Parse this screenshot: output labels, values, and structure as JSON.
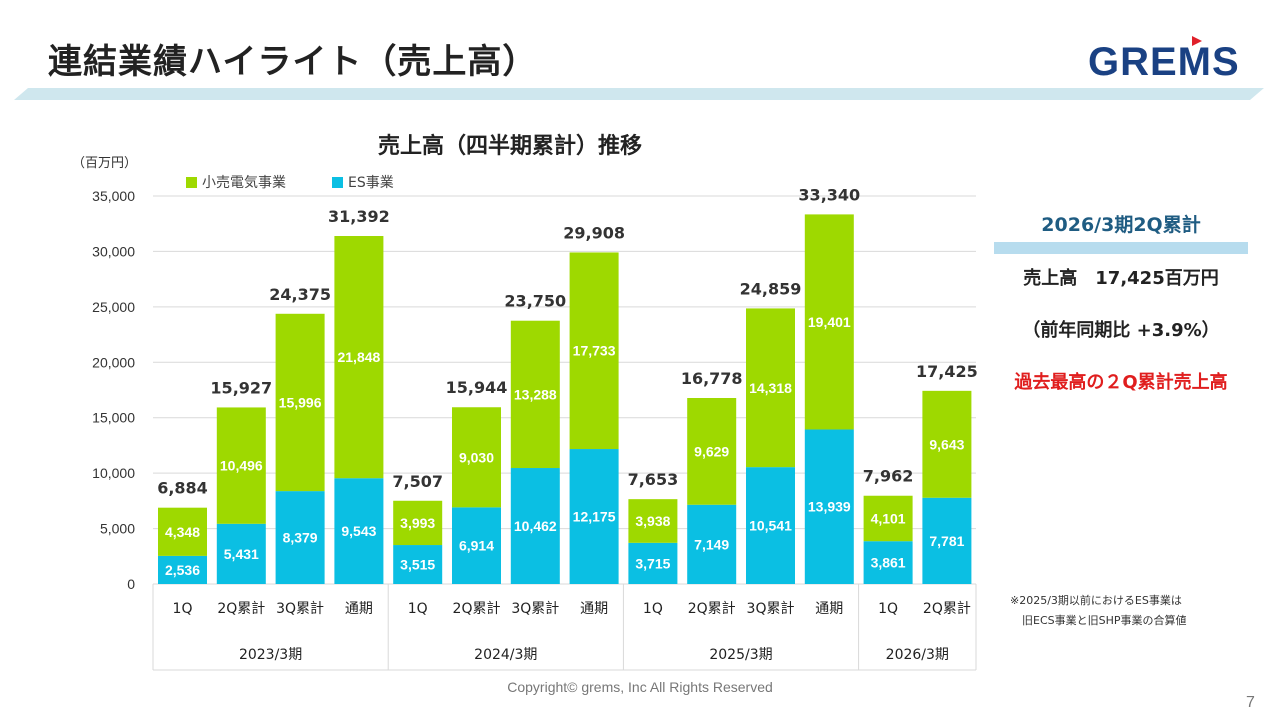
{
  "page": {
    "title": "連結業績ハイライト（売上高）",
    "logo": "GREMS",
    "copyright": "Copyright© grems, Inc All Rights Reserved",
    "page_number": "7"
  },
  "colors": {
    "retail": "#9ed900",
    "es": "#0bbfe3",
    "title_band": "#cfe7ee",
    "summary_head": "#1f5c82",
    "highlight_red": "#e01e1e",
    "logo": "#1a4183"
  },
  "summary": {
    "heading": "2026/3期2Q累計",
    "revenue_line": "売上高　17,425百万円",
    "yoy_line": "（前年同期比 +3.9%）",
    "highlight": "過去最高の２Q累計売上高"
  },
  "note": {
    "line1": "※2025/3期以前におけるES事業は",
    "line2": "旧ECS事業と旧SHP事業の合算値"
  },
  "chart_data": {
    "type": "bar",
    "stacked": true,
    "title": "売上高（四半期累計）推移",
    "ylabel": "（百万円）",
    "xlabel": "",
    "ylim": [
      0,
      35000
    ],
    "yticks": [
      0,
      5000,
      10000,
      15000,
      20000,
      25000,
      30000,
      35000
    ],
    "ytick_labels": [
      "0",
      "5,000",
      "10,000",
      "15,000",
      "20,000",
      "25,000",
      "30,000",
      "35,000"
    ],
    "grid": true,
    "legend_position": "top-left",
    "categories": [
      "1Q",
      "2Q累計",
      "3Q累計",
      "通期",
      "1Q",
      "2Q累計",
      "3Q累計",
      "通期",
      "1Q",
      "2Q累計",
      "3Q累計",
      "通期",
      "1Q",
      "2Q累計"
    ],
    "groups": [
      {
        "label": "2023/3期",
        "count": 4
      },
      {
        "label": "2024/3期",
        "count": 4
      },
      {
        "label": "2025/3期",
        "count": 4
      },
      {
        "label": "2026/3期",
        "count": 2
      }
    ],
    "series": [
      {
        "name": "ES事業",
        "color": "#0bbfe3",
        "values": [
          2536,
          5431,
          8379,
          9543,
          3515,
          6914,
          10462,
          12175,
          3715,
          7149,
          10541,
          13939,
          3861,
          7781
        ],
        "labels": [
          "2,536",
          "5,431",
          "8,379",
          "9,543",
          "3,515",
          "6,914",
          "10,462",
          "12,175",
          "3,715",
          "7,149",
          "10,541",
          "13,939",
          "3,861",
          "7,781"
        ]
      },
      {
        "name": "小売電気事業",
        "color": "#9ed900",
        "values": [
          4348,
          10496,
          15996,
          21848,
          3993,
          9030,
          13288,
          17733,
          3938,
          9629,
          14318,
          19401,
          4101,
          9643
        ],
        "labels": [
          "4,348",
          "10,496",
          "15,996",
          "21,848",
          "3,993",
          "9,030",
          "13,288",
          "17,733",
          "3,938",
          "9,629",
          "14,318",
          "19,401",
          "4,101",
          "9,643"
        ]
      }
    ],
    "totals": [
      6884,
      15927,
      24375,
      31392,
      7507,
      15944,
      23750,
      29908,
      7653,
      16778,
      24859,
      33340,
      7962,
      17425
    ],
    "total_labels": [
      "6,884",
      "15,927",
      "24,375",
      "31,392",
      "7,507",
      "15,944",
      "23,750",
      "29,908",
      "7,653",
      "16,778",
      "24,859",
      "33,340",
      "7,962",
      "17,425"
    ],
    "legend": [
      {
        "name": "小売電気事業",
        "color": "#9ed900"
      },
      {
        "name": "ES事業",
        "color": "#0bbfe3"
      }
    ]
  }
}
